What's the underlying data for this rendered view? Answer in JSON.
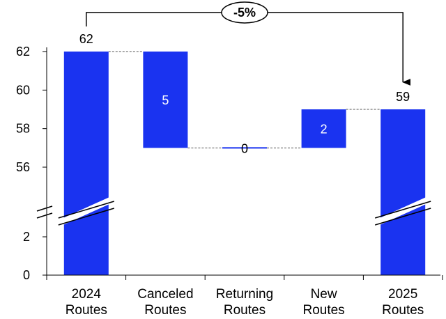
{
  "chart_data": {
    "type": "bar",
    "subtype": "waterfall",
    "categories": [
      [
        "2024",
        "Routes"
      ],
      [
        "Canceled",
        "Routes"
      ],
      [
        "Returning",
        "Routes"
      ],
      [
        "New",
        "Routes"
      ],
      [
        "2025",
        "Routes"
      ]
    ],
    "steps": [
      {
        "kind": "total",
        "value": 62,
        "label": "62"
      },
      {
        "kind": "decrease",
        "value": 5,
        "label": "5"
      },
      {
        "kind": "increase",
        "value": 0,
        "label": "0"
      },
      {
        "kind": "increase",
        "value": 2,
        "label": "2"
      },
      {
        "kind": "total",
        "value": 59,
        "label": "59"
      }
    ],
    "upper_ticks": [
      "56",
      "58",
      "60",
      "62"
    ],
    "lower_ticks": [
      "0",
      "2"
    ],
    "y_axis_break": true,
    "ylim_upper": [
      54.5,
      62
    ],
    "ylim_lower": [
      0,
      2
    ],
    "total_change_label": "-5%",
    "bar_color": "#1a33f0",
    "connector_color": "#555555",
    "grid": false,
    "legend": "none"
  }
}
